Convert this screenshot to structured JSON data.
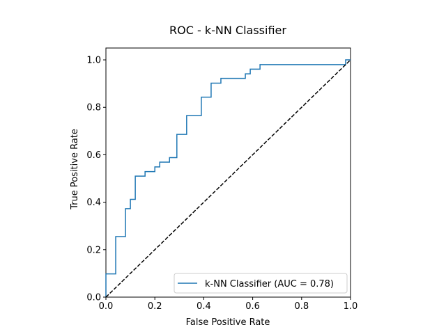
{
  "chart_data": {
    "type": "line",
    "title": "ROC - k-NN Classifier",
    "xlabel": "False Positive Rate",
    "ylabel": "True Positive Rate",
    "xlim": [
      0.0,
      1.0
    ],
    "ylim": [
      0.0,
      1.05
    ],
    "xticks": [
      0.0,
      0.2,
      0.4,
      0.6,
      0.8,
      1.0
    ],
    "yticks": [
      0.0,
      0.2,
      0.4,
      0.6,
      0.8,
      1.0
    ],
    "xtick_labels": [
      "0.0",
      "0.2",
      "0.4",
      "0.6",
      "0.8",
      "1.0"
    ],
    "ytick_labels": [
      "0.0",
      "0.2",
      "0.4",
      "0.6",
      "0.8",
      "1.0"
    ],
    "grid": false,
    "legend_position": "lower-right",
    "series": [
      {
        "name": "k-NN Classifier (AUC = 0.78)",
        "style": "step",
        "color": "#1f77b4",
        "x": [
          0.0,
          0.0,
          0.04,
          0.04,
          0.08,
          0.08,
          0.1,
          0.1,
          0.12,
          0.12,
          0.16,
          0.16,
          0.2,
          0.2,
          0.22,
          0.22,
          0.26,
          0.26,
          0.29,
          0.29,
          0.33,
          0.33,
          0.39,
          0.39,
          0.43,
          0.43,
          0.47,
          0.47,
          0.57,
          0.57,
          0.59,
          0.59,
          0.63,
          0.63,
          0.98,
          0.98,
          1.0
        ],
        "y": [
          0.0,
          0.098,
          0.098,
          0.255,
          0.255,
          0.373,
          0.373,
          0.412,
          0.412,
          0.51,
          0.51,
          0.529,
          0.529,
          0.549,
          0.549,
          0.569,
          0.569,
          0.588,
          0.588,
          0.686,
          0.686,
          0.765,
          0.765,
          0.843,
          0.843,
          0.902,
          0.902,
          0.922,
          0.922,
          0.941,
          0.941,
          0.961,
          0.961,
          0.98,
          0.98,
          1.0,
          1.0
        ]
      },
      {
        "name": "",
        "style": "dashed",
        "color": "#000000",
        "x": [
          0.0,
          1.0
        ],
        "y": [
          0.0,
          1.0
        ]
      }
    ]
  }
}
